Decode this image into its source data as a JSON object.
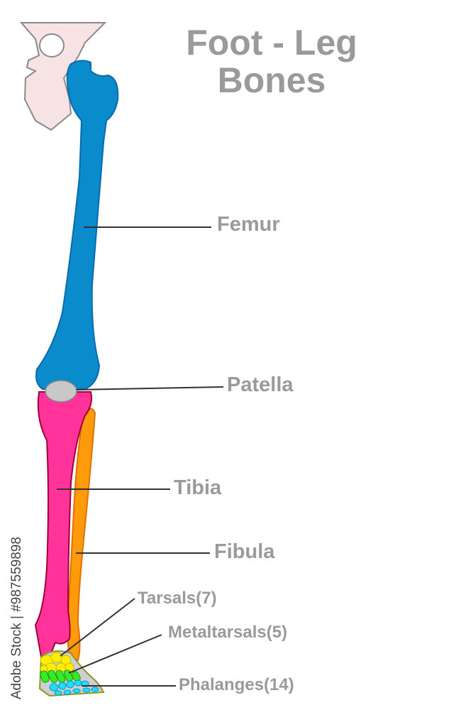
{
  "title": {
    "line1": "Foot - Leg",
    "line2": "Bones"
  },
  "labels": {
    "femur": "Femur",
    "patella": "Patella",
    "tibia": "Tibia",
    "fibula": "Fibula",
    "tarsals": "Tarsals(7)",
    "metatarsals": "Metaltarsals(5)",
    "phalanges": "Phalanges(14)"
  },
  "watermark": "Adobe Stock | #987559898",
  "colors": {
    "pelvis": "#f7e3e3",
    "femur": "#0a8ccc",
    "patella": "#c8c8c8",
    "tibia": "#ff3399",
    "fibula": "#ff9a0a",
    "tarsals": "#ffee00",
    "metatarsals": "#33ee22",
    "phalanges": "#22ddff",
    "label_text": "#9a9a9a"
  }
}
